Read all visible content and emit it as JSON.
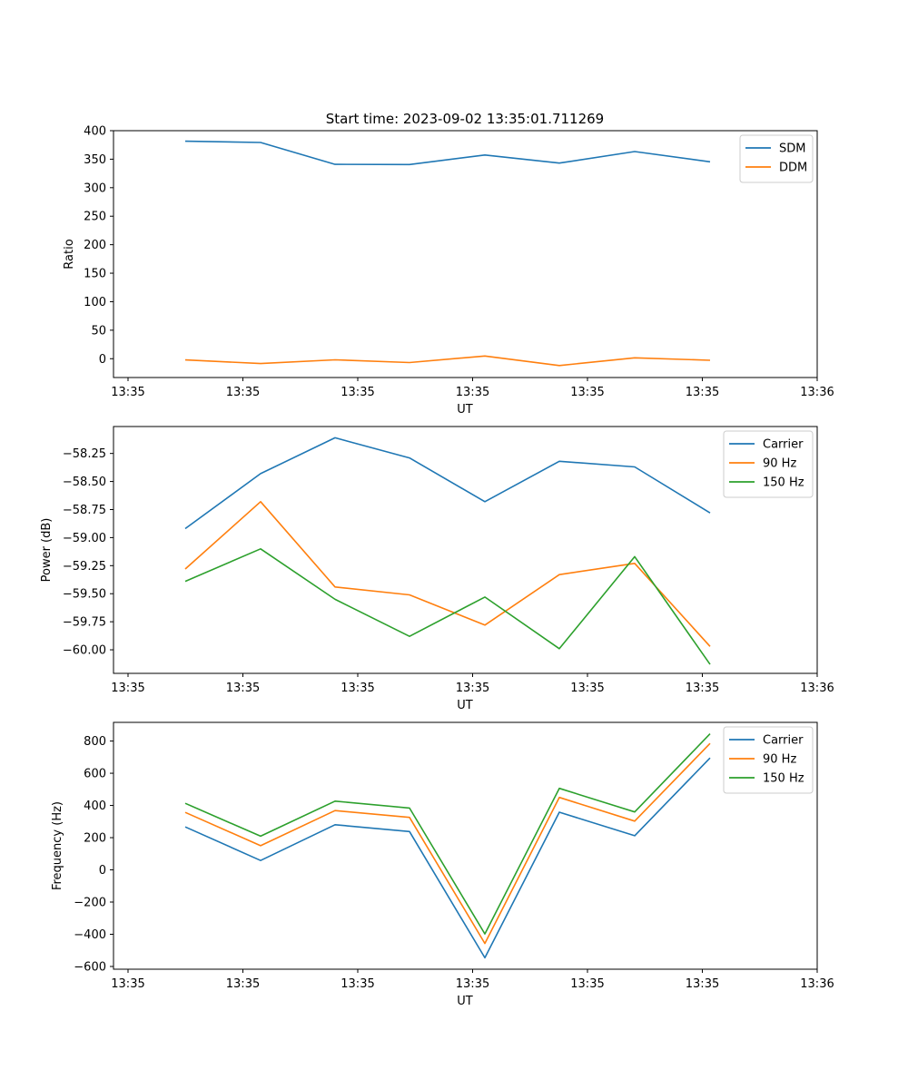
{
  "title": "Start time: 2023-09-02 13:35:01.711269",
  "colors": {
    "blue": "#1f77b4",
    "orange": "#ff7f0e",
    "green": "#2ca02c",
    "axis": "#000000",
    "legend_border": "#cccccc"
  },
  "chart_data": [
    {
      "type": "line",
      "xlabel": "UT",
      "ylabel": "Ratio",
      "x_tick_labels": [
        "13:35",
        "13:35",
        "13:35",
        "13:35",
        "13:35",
        "13:35",
        "13:36"
      ],
      "ylim": [
        -33,
        400
      ],
      "yticks": [
        0,
        50,
        100,
        150,
        200,
        250,
        300,
        350,
        400
      ],
      "ytick_labels": [
        "0",
        "50",
        "100",
        "150",
        "200",
        "250",
        "300",
        "350",
        "400"
      ],
      "legend_position": "top-right",
      "grid": false,
      "series": [
        {
          "name": "SDM",
          "color": "blue",
          "values": [
            381.5,
            379.3,
            341.0,
            340.6,
            357.4,
            343.2,
            363.4,
            345.4
          ]
        },
        {
          "name": "DDM",
          "color": "orange",
          "values": [
            -2.1,
            -8.5,
            -1.9,
            -6.7,
            4.8,
            -12.0,
            1.6,
            -2.7
          ]
        }
      ]
    },
    {
      "type": "line",
      "xlabel": "UT",
      "ylabel": "Power (dB)",
      "x_tick_labels": [
        "13:35",
        "13:35",
        "13:35",
        "13:35",
        "13:35",
        "13:35",
        "13:36"
      ],
      "ylim": [
        -60.21,
        -58.01
      ],
      "yticks": [
        -60.0,
        -59.75,
        -59.5,
        -59.25,
        -59.0,
        -58.75,
        -58.5,
        -58.25
      ],
      "ytick_labels": [
        "−60.00",
        "−59.75",
        "−59.50",
        "−59.25",
        "−59.00",
        "−58.75",
        "−58.50",
        "−58.25"
      ],
      "legend_position": "top-right",
      "grid": false,
      "series": [
        {
          "name": "Carrier",
          "color": "blue",
          "values": [
            -58.92,
            -58.43,
            -58.11,
            -58.29,
            -58.68,
            -58.32,
            -58.37,
            -58.78
          ]
        },
        {
          "name": "90 Hz",
          "color": "orange",
          "values": [
            -59.28,
            -58.68,
            -59.44,
            -59.51,
            -59.78,
            -59.33,
            -59.23,
            -59.97
          ]
        },
        {
          "name": "150 Hz",
          "color": "green",
          "values": [
            -59.39,
            -59.1,
            -59.55,
            -59.88,
            -59.53,
            -59.99,
            -59.17,
            -60.13
          ]
        }
      ]
    },
    {
      "type": "line",
      "xlabel": "UT",
      "ylabel": "Frequency (Hz)",
      "x_tick_labels": [
        "13:35",
        "13:35",
        "13:35",
        "13:35",
        "13:35",
        "13:35",
        "13:36"
      ],
      "ylim": [
        -617,
        916
      ],
      "yticks": [
        -600,
        -400,
        -200,
        0,
        200,
        400,
        600,
        800
      ],
      "ytick_labels": [
        "−600",
        "−400",
        "−200",
        "0",
        "200",
        "400",
        "600",
        "800"
      ],
      "legend_position": "top-right",
      "grid": false,
      "series": [
        {
          "name": "Carrier",
          "color": "blue",
          "values": [
            267,
            58,
            280,
            238,
            -546,
            358,
            212,
            695
          ]
        },
        {
          "name": "90 Hz",
          "color": "orange",
          "values": [
            357,
            150,
            368,
            326,
            -457,
            450,
            303,
            785
          ]
        },
        {
          "name": "150 Hz",
          "color": "green",
          "values": [
            413,
            209,
            427,
            384,
            -398,
            506,
            360,
            845
          ]
        }
      ]
    }
  ]
}
